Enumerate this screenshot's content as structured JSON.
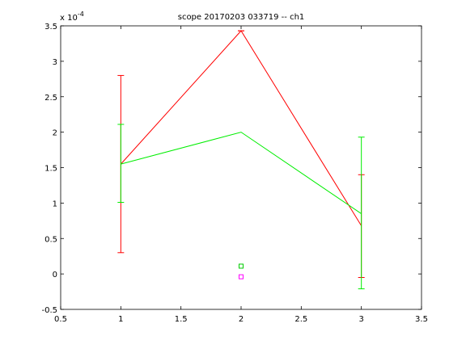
{
  "chart_data": {
    "type": "line",
    "title": "scope 20170203 033719 -- ch1",
    "xlabel": "",
    "ylabel": "",
    "y_multiplier": "x 10",
    "y_multiplier_exponent": "-4",
    "xlim": [
      0.5,
      3.5
    ],
    "ylim": [
      -0.5,
      3.5
    ],
    "xticks": [
      0.5,
      1,
      1.5,
      2,
      2.5,
      3,
      3.5
    ],
    "xtick_labels": [
      "0.5",
      "1",
      "1.5",
      "2",
      "2.5",
      "3",
      "3.5"
    ],
    "yticks": [
      -0.5,
      0,
      0.5,
      1,
      1.5,
      2,
      2.5,
      3,
      3.5
    ],
    "ytick_labels": [
      "-0.5",
      "0",
      "0.5",
      "1",
      "1.5",
      "2",
      "2.5",
      "3",
      "3.5"
    ],
    "grid": false,
    "series": [
      {
        "color": "#ff0000",
        "x": [
          1,
          2,
          3
        ],
        "y": [
          1.55,
          3.43,
          0.68
        ],
        "errors": [
          {
            "x": 1,
            "low": 0.3,
            "high": 2.8
          },
          {
            "x": 2,
            "low": 3.43,
            "high": 3.43
          },
          {
            "x": 3,
            "low": -0.05,
            "high": 1.4
          }
        ]
      },
      {
        "color": "#00ee00",
        "x": [
          1,
          2,
          3
        ],
        "y": [
          1.55,
          2.0,
          0.85
        ],
        "errors": [
          {
            "x": 1,
            "low": 1.01,
            "high": 2.11
          },
          {
            "x": 3,
            "low": -0.21,
            "high": 1.93
          }
        ]
      }
    ],
    "markers": [
      {
        "x": 2,
        "y": 0.11,
        "color": "#00cc00",
        "shape": "square"
      },
      {
        "x": 2,
        "y": -0.04,
        "color": "#ff00ff",
        "shape": "square"
      }
    ]
  }
}
